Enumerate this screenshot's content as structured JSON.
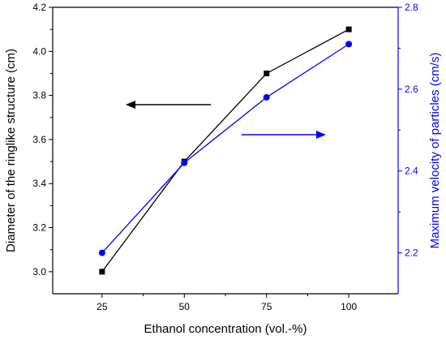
{
  "chart_data": {
    "type": "line",
    "xlabel": "Ethanol concentration (vol.-%)",
    "ylabel_left": "Diameter of the ringlike structure (cm)",
    "ylabel_right": "Maximum velocity of particles (cm/s)",
    "x": [
      25,
      50,
      75,
      100
    ],
    "x_ticks": [
      25,
      50,
      75,
      100
    ],
    "x_tick_labels": [
      "25",
      "50",
      "75",
      "100"
    ],
    "xlim": [
      10,
      115
    ],
    "ylim_left": [
      2.9,
      4.2
    ],
    "y_ticks_left": [
      3.0,
      3.2,
      3.4,
      3.6,
      3.8,
      4.0,
      4.2
    ],
    "y_tick_labels_left": [
      "3.0",
      "3.2",
      "3.4",
      "3.6",
      "3.8",
      "4.0",
      "4.2"
    ],
    "ylim_right": [
      2.1,
      2.8
    ],
    "y_ticks_right": [
      2.2,
      2.4,
      2.6,
      2.8
    ],
    "y_tick_labels_right": [
      "2.2",
      "2.4",
      "2.6",
      "2.8"
    ],
    "grid": false,
    "legend": "none",
    "series": [
      {
        "axis": "left",
        "marker": "square",
        "color": "#000000",
        "values": [
          3.0,
          3.5,
          3.9,
          4.1
        ]
      },
      {
        "axis": "right",
        "marker": "circle",
        "color": "#0000ff",
        "values": [
          2.2,
          2.42,
          2.58,
          2.71
        ]
      }
    ],
    "annotations": [
      {
        "type": "arrow",
        "direction": "left",
        "color": "#000000",
        "points_to": "left-axis"
      },
      {
        "type": "arrow",
        "direction": "right",
        "color": "#0000ff",
        "points_to": "right-axis"
      }
    ],
    "colors": {
      "left_axis": "#000000",
      "right_axis": "#0000ff"
    }
  }
}
